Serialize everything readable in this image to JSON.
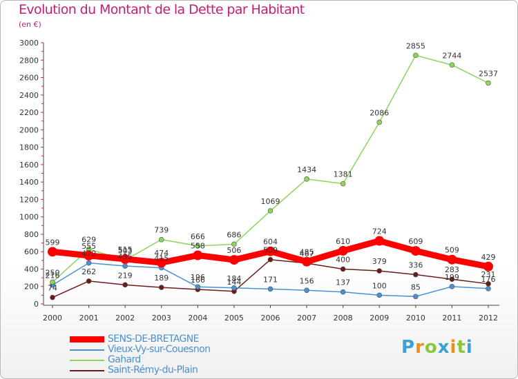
{
  "title": "Evolution du Montant de la Dette par Habitant",
  "unit": "(en €)",
  "logo": {
    "letters": [
      "P",
      "r",
      "o",
      "x",
      "i",
      "t",
      "i"
    ],
    "colors": [
      "#3aa0d8",
      "#f08c1a",
      "#8cc63f",
      "#3aa0d8",
      "#f08c1a",
      "#8cc63f",
      "#3aa0d8"
    ]
  },
  "chart_data": {
    "type": "line",
    "title": "Evolution du Montant de la Dette par Habitant",
    "ylabel": "(en €)",
    "x": [
      "2000",
      "2001",
      "2002",
      "2003",
      "2004",
      "2005",
      "2006",
      "2007",
      "2008",
      "2009",
      "2010",
      "2011",
      "2012"
    ],
    "ylim": [
      0,
      3000
    ],
    "yticks": [
      "0",
      "200",
      "400",
      "600",
      "800",
      "1000",
      "1200",
      "1400",
      "1600",
      "1800",
      "2000",
      "2200",
      "2400",
      "2600",
      "2800",
      "3000"
    ],
    "grid": false,
    "legend_position": "bottom-left",
    "series": [
      {
        "name": "SENS-DE-BRETAGNE",
        "color": "#ff0000",
        "values": [
          599,
          555,
          515,
          474,
          558,
          506,
          604,
          485,
          610,
          724,
          609,
          509,
          429
        ]
      },
      {
        "name": "Vieux-Vy-sur-Couesnon",
        "color": "#4a90d0",
        "values": [
          216,
          470,
          435,
          415,
          196,
          184,
          171,
          156,
          137,
          100,
          85,
          199,
          176
        ]
      },
      {
        "name": "Gahard",
        "color": "#8cd45a",
        "values": [
          250,
          629,
          503,
          739,
          666,
          686,
          1069,
          1434,
          1381,
          2086,
          2855,
          2744,
          2537
        ]
      },
      {
        "name": "Saint-Rémy-du-Plain",
        "color": "#6b1a1a",
        "values": [
          74,
          262,
          219,
          189,
          166,
          144,
          509,
          467,
          400,
          379,
          336,
          283,
          231
        ]
      }
    ]
  }
}
